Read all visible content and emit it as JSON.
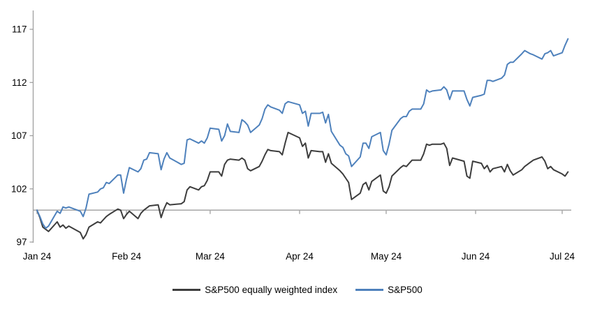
{
  "chart_data": {
    "type": "line",
    "title": "",
    "x_axis": {
      "tick_labels": [
        "Jan 24",
        "Feb 24",
        "Mar 24",
        "Apr 24",
        "May 24",
        "Jun 24",
        "Jul 24"
      ],
      "tick_day_of_year": [
        1,
        32,
        61,
        92,
        122,
        153,
        183
      ],
      "range_days": [
        1,
        186
      ]
    },
    "y_axis": {
      "ticks": [
        97,
        102,
        107,
        112,
        117
      ],
      "range": [
        97,
        117
      ],
      "baseline_value": 100
    },
    "grid": "off",
    "legend_position": "bottom-center",
    "series": [
      {
        "name": "S&P500 equally weighted index",
        "color": "#3d3d3d",
        "points": [
          [
            1,
            100
          ],
          [
            2,
            99.3
          ],
          [
            3,
            98.4
          ],
          [
            4,
            98.2
          ],
          [
            5,
            98.0
          ],
          [
            8,
            98.9
          ],
          [
            9,
            98.4
          ],
          [
            10,
            98.6
          ],
          [
            11,
            98.3
          ],
          [
            12,
            98.5
          ],
          [
            16,
            97.9
          ],
          [
            17,
            97.3
          ],
          [
            18,
            97.7
          ],
          [
            19,
            98.4
          ],
          [
            22,
            98.9
          ],
          [
            23,
            98.8
          ],
          [
            24,
            99.1
          ],
          [
            25,
            99.4
          ],
          [
            26,
            99.6
          ],
          [
            29,
            100.1
          ],
          [
            30,
            100.0
          ],
          [
            31,
            99.2
          ],
          [
            32,
            99.6
          ],
          [
            33,
            99.9
          ],
          [
            36,
            99.2
          ],
          [
            37,
            99.7
          ],
          [
            38,
            100.0
          ],
          [
            39,
            100.2
          ],
          [
            40,
            100.4
          ],
          [
            43,
            100.5
          ],
          [
            44,
            99.3
          ],
          [
            45,
            100.1
          ],
          [
            46,
            100.7
          ],
          [
            47,
            100.5
          ],
          [
            51,
            100.6
          ],
          [
            52,
            100.8
          ],
          [
            53,
            101.9
          ],
          [
            54,
            102.2
          ],
          [
            57,
            101.9
          ],
          [
            58,
            102.2
          ],
          [
            59,
            102.3
          ],
          [
            60,
            102.8
          ],
          [
            61,
            103.6
          ],
          [
            64,
            103.6
          ],
          [
            65,
            103.2
          ],
          [
            66,
            104.3
          ],
          [
            67,
            104.7
          ],
          [
            68,
            104.8
          ],
          [
            71,
            104.7
          ],
          [
            72,
            104.9
          ],
          [
            73,
            104.7
          ],
          [
            74,
            103.9
          ],
          [
            75,
            103.7
          ],
          [
            78,
            104.1
          ],
          [
            79,
            104.6
          ],
          [
            80,
            105.2
          ],
          [
            81,
            105.7
          ],
          [
            82,
            105.6
          ],
          [
            85,
            105.5
          ],
          [
            86,
            105.2
          ],
          [
            87,
            106.3
          ],
          [
            88,
            107.3
          ],
          [
            92,
            106.8
          ],
          [
            93,
            106.0
          ],
          [
            94,
            106.3
          ],
          [
            95,
            104.9
          ],
          [
            96,
            105.6
          ],
          [
            99,
            105.5
          ],
          [
            100,
            105.5
          ],
          [
            101,
            104.5
          ],
          [
            102,
            105.3
          ],
          [
            103,
            104.4
          ],
          [
            106,
            103.7
          ],
          [
            107,
            103.4
          ],
          [
            108,
            103.0
          ],
          [
            109,
            102.6
          ],
          [
            110,
            101.0
          ],
          [
            113,
            101.6
          ],
          [
            114,
            102.4
          ],
          [
            115,
            102.6
          ],
          [
            116,
            101.9
          ],
          [
            117,
            102.7
          ],
          [
            120,
            103.3
          ],
          [
            121,
            101.8
          ],
          [
            122,
            101.6
          ],
          [
            123,
            102.2
          ],
          [
            124,
            103.2
          ],
          [
            127,
            104.0
          ],
          [
            128,
            104.2
          ],
          [
            129,
            104.1
          ],
          [
            130,
            104.4
          ],
          [
            131,
            104.7
          ],
          [
            134,
            104.7
          ],
          [
            135,
            105.3
          ],
          [
            136,
            106.2
          ],
          [
            137,
            106.1
          ],
          [
            138,
            106.2
          ],
          [
            141,
            106.2
          ],
          [
            142,
            106.3
          ],
          [
            143,
            105.8
          ],
          [
            144,
            104.2
          ],
          [
            145,
            104.9
          ],
          [
            149,
            104.6
          ],
          [
            150,
            103.2
          ],
          [
            151,
            103.0
          ],
          [
            152,
            104.6
          ],
          [
            155,
            104.4
          ],
          [
            156,
            103.9
          ],
          [
            157,
            104.2
          ],
          [
            158,
            103.6
          ],
          [
            159,
            103.9
          ],
          [
            162,
            104.1
          ],
          [
            163,
            103.6
          ],
          [
            164,
            104.3
          ],
          [
            165,
            103.7
          ],
          [
            166,
            103.3
          ],
          [
            169,
            103.8
          ],
          [
            170,
            104.1
          ],
          [
            172,
            104.5
          ],
          [
            173,
            104.7
          ],
          [
            176,
            105.0
          ],
          [
            177,
            104.6
          ],
          [
            178,
            103.9
          ],
          [
            179,
            104.1
          ],
          [
            180,
            103.8
          ],
          [
            183,
            103.4
          ],
          [
            184,
            103.2
          ],
          [
            185,
            103.6
          ]
        ]
      },
      {
        "name": "S&P500",
        "color": "#4e81bc",
        "points": [
          [
            1,
            100
          ],
          [
            2,
            99.4
          ],
          [
            3,
            98.7
          ],
          [
            4,
            98.3
          ],
          [
            5,
            98.5
          ],
          [
            8,
            99.9
          ],
          [
            9,
            99.7
          ],
          [
            10,
            100.3
          ],
          [
            11,
            100.2
          ],
          [
            12,
            100.3
          ],
          [
            16,
            99.9
          ],
          [
            17,
            99.4
          ],
          [
            18,
            100.2
          ],
          [
            19,
            101.5
          ],
          [
            22,
            101.7
          ],
          [
            23,
            102.0
          ],
          [
            24,
            102.1
          ],
          [
            25,
            102.6
          ],
          [
            26,
            102.5
          ],
          [
            29,
            103.3
          ],
          [
            30,
            103.3
          ],
          [
            31,
            101.6
          ],
          [
            32,
            102.9
          ],
          [
            33,
            104.0
          ],
          [
            36,
            103.6
          ],
          [
            37,
            103.9
          ],
          [
            38,
            104.7
          ],
          [
            39,
            104.8
          ],
          [
            40,
            105.4
          ],
          [
            43,
            105.3
          ],
          [
            44,
            103.8
          ],
          [
            45,
            104.8
          ],
          [
            46,
            105.4
          ],
          [
            47,
            104.9
          ],
          [
            51,
            104.3
          ],
          [
            52,
            104.4
          ],
          [
            53,
            106.6
          ],
          [
            54,
            106.7
          ],
          [
            57,
            106.3
          ],
          [
            58,
            106.5
          ],
          [
            59,
            106.3
          ],
          [
            60,
            106.8
          ],
          [
            61,
            107.7
          ],
          [
            64,
            107.6
          ],
          [
            65,
            106.5
          ],
          [
            66,
            107.0
          ],
          [
            67,
            108.1
          ],
          [
            68,
            107.4
          ],
          [
            71,
            107.3
          ],
          [
            72,
            108.5
          ],
          [
            73,
            108.3
          ],
          [
            74,
            108.0
          ],
          [
            75,
            107.3
          ],
          [
            78,
            108.0
          ],
          [
            79,
            108.6
          ],
          [
            80,
            109.5
          ],
          [
            81,
            109.9
          ],
          [
            82,
            109.7
          ],
          [
            85,
            109.4
          ],
          [
            86,
            109.1
          ],
          [
            87,
            110.0
          ],
          [
            88,
            110.2
          ],
          [
            92,
            109.9
          ],
          [
            93,
            109.1
          ],
          [
            94,
            109.3
          ],
          [
            95,
            107.9
          ],
          [
            96,
            109.1
          ],
          [
            99,
            109.1
          ],
          [
            100,
            109.2
          ],
          [
            101,
            108.2
          ],
          [
            102,
            109.0
          ],
          [
            103,
            107.4
          ],
          [
            106,
            106.1
          ],
          [
            107,
            105.9
          ],
          [
            108,
            105.3
          ],
          [
            109,
            105.1
          ],
          [
            110,
            104.1
          ],
          [
            113,
            105.0
          ],
          [
            114,
            106.3
          ],
          [
            115,
            106.3
          ],
          [
            116,
            105.8
          ],
          [
            117,
            106.9
          ],
          [
            120,
            107.3
          ],
          [
            121,
            105.6
          ],
          [
            122,
            105.2
          ],
          [
            123,
            106.2
          ],
          [
            124,
            107.5
          ],
          [
            127,
            108.6
          ],
          [
            128,
            108.8
          ],
          [
            129,
            108.8
          ],
          [
            130,
            109.3
          ],
          [
            131,
            109.5
          ],
          [
            134,
            109.5
          ],
          [
            135,
            110.0
          ],
          [
            136,
            111.3
          ],
          [
            137,
            111.1
          ],
          [
            138,
            111.2
          ],
          [
            141,
            111.3
          ],
          [
            142,
            111.6
          ],
          [
            143,
            111.3
          ],
          [
            144,
            110.4
          ],
          [
            145,
            111.2
          ],
          [
            149,
            111.2
          ],
          [
            150,
            110.4
          ],
          [
            151,
            109.8
          ],
          [
            152,
            110.6
          ],
          [
            155,
            110.8
          ],
          [
            156,
            110.9
          ],
          [
            157,
            112.2
          ],
          [
            158,
            112.2
          ],
          [
            159,
            112.1
          ],
          [
            162,
            112.4
          ],
          [
            163,
            112.7
          ],
          [
            164,
            113.7
          ],
          [
            165,
            113.9
          ],
          [
            166,
            113.9
          ],
          [
            169,
            114.7
          ],
          [
            170,
            115.0
          ],
          [
            172,
            114.7
          ],
          [
            173,
            114.6
          ],
          [
            176,
            114.2
          ],
          [
            177,
            114.7
          ],
          [
            178,
            114.8
          ],
          [
            179,
            115.0
          ],
          [
            180,
            114.5
          ],
          [
            183,
            114.8
          ],
          [
            184,
            115.5
          ],
          [
            185,
            116.1
          ]
        ]
      }
    ]
  },
  "legend": {
    "items": [
      {
        "label": "S&P500 equally weighted index",
        "color": "#3d3d3d"
      },
      {
        "label": "S&P500",
        "color": "#4e81bc"
      }
    ]
  },
  "colors": {
    "axis_spine": "#a0a0a0",
    "baseline": "#a6a6a6",
    "tick_text": "#000000",
    "background": "#ffffff"
  }
}
